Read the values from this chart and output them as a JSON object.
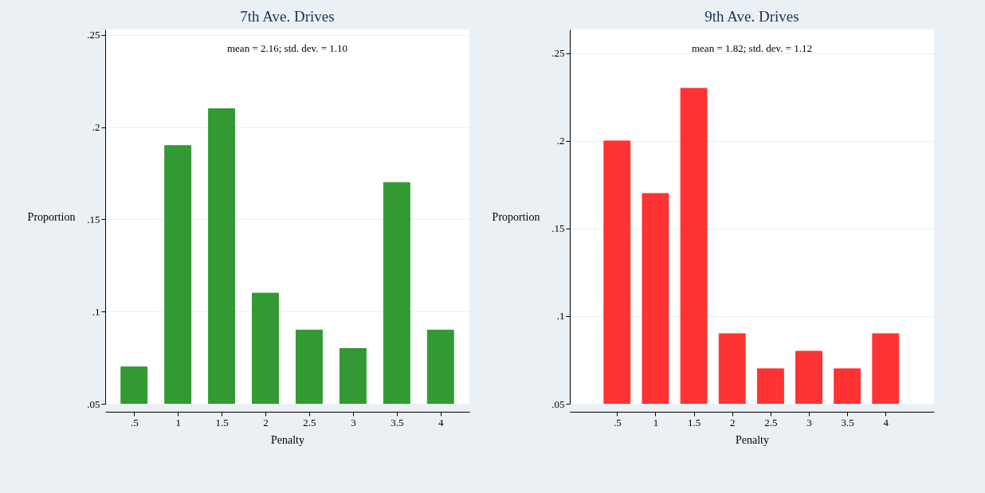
{
  "chart_data": [
    {
      "type": "bar",
      "title": "7th Ave. Drives",
      "xlabel": "Penalty",
      "ylabel": "Proportion",
      "annotations": [
        "mean = 2.16; std. dev. = 1.10"
      ],
      "x": [
        0.5,
        1,
        1.5,
        2,
        2.5,
        3,
        3.5,
        4
      ],
      "series": [
        {
          "color": "#339933",
          "values": [
            0.07,
            0.19,
            0.21,
            0.11,
            0.09,
            0.08,
            0.17,
            0.09
          ]
        }
      ],
      "xlim": [
        0.17,
        4.33
      ],
      "xticks": [
        {
          "value": 0.5,
          "label": ".5"
        },
        1,
        1.5,
        2,
        2.5,
        3,
        3.5,
        4
      ],
      "ylim": [
        0.05,
        0.253
      ],
      "yticks": [
        {
          "value": 0.05,
          "label": ".05"
        },
        {
          "value": 0.1,
          "label": ".1"
        },
        {
          "value": 0.15,
          "label": ".15"
        },
        {
          "value": 0.2,
          "label": ".2"
        },
        {
          "value": 0.25,
          "label": ".25"
        }
      ],
      "grid": "y"
    },
    {
      "type": "bar",
      "title": "9th Ave. Drives",
      "xlabel": "Penalty",
      "ylabel": "Proportion",
      "annotations": [
        "mean = 1.82; std. dev. = 1.12"
      ],
      "x": [
        0.5,
        1,
        1.5,
        2,
        2.5,
        3,
        3.5,
        4
      ],
      "series": [
        {
          "color": "#ff3333",
          "values": [
            0.2,
            0.17,
            0.23,
            0.09,
            0.07,
            0.08,
            0.07,
            0.09
          ]
        }
      ],
      "xlim": [
        -0.116,
        4.63
      ],
      "xticks": [
        {
          "value": 0.5,
          "label": ".5"
        },
        1,
        1.5,
        2,
        2.5,
        3,
        3.5,
        4
      ],
      "ylim": [
        0.05,
        0.2636
      ],
      "yticks": [
        {
          "value": 0.05,
          "label": ".05"
        },
        {
          "value": 0.1,
          "label": ".1"
        },
        {
          "value": 0.15,
          "label": ".15"
        },
        {
          "value": 0.2,
          "label": ".2"
        },
        {
          "value": 0.25,
          "label": ".25"
        }
      ],
      "grid": "y"
    }
  ]
}
